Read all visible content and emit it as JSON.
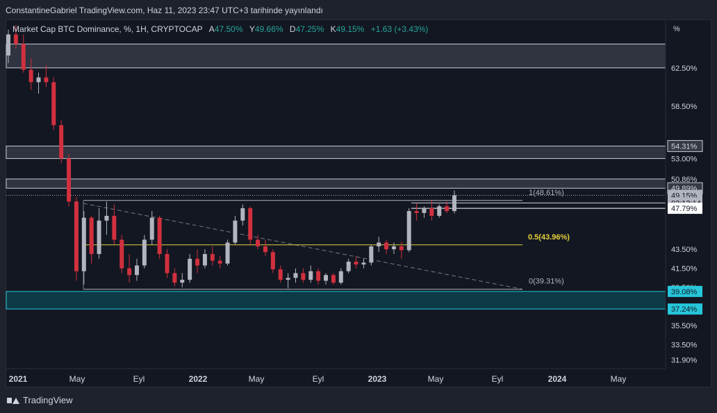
{
  "header": {
    "published": "ConstantineGabriel TradingView.com, Haz 11, 2023 23:47 UTC+3 tarihinde yayınlandı"
  },
  "legend": {
    "symbol": "Market Cap BTC Dominance, %, 1H, CRYPTOCAP",
    "open_label": "A",
    "open_value": "47.50%",
    "high_label": "Y",
    "high_value": "49.66%",
    "low_label": "D",
    "low_value": "47.25%",
    "close_label": "K",
    "close_value": "49.15%",
    "change": "+1.63 (+3.43%)"
  },
  "footer": {
    "brand": "TradingView"
  },
  "colors": {
    "up": "#b2b5be",
    "down": "#d1303e",
    "fib": "#e6d23a",
    "zone": "#26c6da",
    "zone_fill": "#0d3a46"
  },
  "chart_data": {
    "type": "candlestick",
    "title": "Market Cap BTC Dominance, %, 1H, CRYPTOCAP",
    "yunit": "%",
    "ylim": [
      31.0,
      67.5
    ],
    "x_ticks": [
      "2021",
      "May",
      "Eyl",
      "2022",
      "May",
      "Eyl",
      "2023",
      "May",
      "Eyl",
      "2024",
      "May"
    ],
    "y_ticks": [
      "62.50%",
      "58.50%",
      "43.50%",
      "41.50%",
      "39.50%",
      "35.50%",
      "33.50%",
      "31.90%"
    ],
    "price_labels": [
      {
        "text": "54.31%",
        "value": 54.31,
        "style": "gray"
      },
      {
        "text": "53.00%",
        "value": 53.0,
        "style": "plain"
      },
      {
        "text": "50.86%",
        "value": 50.86,
        "style": "plain"
      },
      {
        "text": "49.89%",
        "value": 49.89,
        "style": "gray"
      },
      {
        "text": "49.15%",
        "value": 49.15,
        "style": "current"
      },
      {
        "text": "03:12:14",
        "value": 48.35,
        "style": "current"
      },
      {
        "text": "47.79%",
        "value": 47.79,
        "style": "white"
      },
      {
        "text": "39.08%",
        "value": 39.08,
        "style": "teal"
      },
      {
        "text": "37.24%",
        "value": 37.24,
        "style": "teal"
      }
    ],
    "zones": [
      {
        "from": 62.5,
        "to": 65.0,
        "color": "gray"
      },
      {
        "from": 53.0,
        "to": 54.31,
        "color": "gray"
      },
      {
        "from": 49.89,
        "to": 50.86,
        "color": "gray"
      },
      {
        "from": 37.24,
        "to": 39.08,
        "color": "teal"
      }
    ],
    "fibonacci": [
      {
        "label": "1(48.61%)",
        "value": 48.61
      },
      {
        "label": "0.5(43.96%)",
        "value": 43.96
      },
      {
        "label": "0(39.31%)",
        "value": 39.31
      }
    ],
    "trendline": {
      "from": [
        "2021-05",
        48.3
      ],
      "to": [
        "2023-09",
        39.31
      ]
    },
    "ohlc": [
      {
        "t": "2021-01",
        "o": 63.8,
        "h": 66.5,
        "l": 63.0,
        "c": 66.0
      },
      {
        "t": "2021-01b",
        "o": 66.0,
        "h": 67.0,
        "l": 64.5,
        "c": 65.0
      },
      {
        "t": "2021-02",
        "o": 65.0,
        "h": 66.0,
        "l": 62.0,
        "c": 62.3
      },
      {
        "t": "2021-02b",
        "o": 62.3,
        "h": 63.5,
        "l": 60.2,
        "c": 61.0
      },
      {
        "t": "2021-03",
        "o": 61.0,
        "h": 62.0,
        "l": 59.8,
        "c": 61.5
      },
      {
        "t": "2021-03b",
        "o": 61.5,
        "h": 62.8,
        "l": 60.5,
        "c": 61.0
      },
      {
        "t": "2021-04",
        "o": 61.0,
        "h": 61.5,
        "l": 56.0,
        "c": 56.5
      },
      {
        "t": "2021-04b",
        "o": 56.5,
        "h": 57.0,
        "l": 52.5,
        "c": 53.0
      },
      {
        "t": "2021-05",
        "o": 53.0,
        "h": 53.5,
        "l": 48.0,
        "c": 48.5
      },
      {
        "t": "2021-05b",
        "o": 48.5,
        "h": 49.0,
        "l": 40.2,
        "c": 41.2
      },
      {
        "t": "2021-06",
        "o": 41.2,
        "h": 47.5,
        "l": 39.8,
        "c": 46.8
      },
      {
        "t": "2021-06b",
        "o": 46.8,
        "h": 47.0,
        "l": 42.0,
        "c": 43.0
      },
      {
        "t": "2021-07",
        "o": 43.0,
        "h": 47.8,
        "l": 42.5,
        "c": 46.5
      },
      {
        "t": "2021-07b",
        "o": 46.5,
        "h": 48.5,
        "l": 45.0,
        "c": 47.0
      },
      {
        "t": "2021-08",
        "o": 47.0,
        "h": 48.2,
        "l": 44.0,
        "c": 44.5
      },
      {
        "t": "2021-08b",
        "o": 44.5,
        "h": 45.0,
        "l": 41.0,
        "c": 41.5
      },
      {
        "t": "2021-09",
        "o": 41.5,
        "h": 43.0,
        "l": 40.0,
        "c": 40.8
      },
      {
        "t": "2021-09b",
        "o": 40.8,
        "h": 42.5,
        "l": 40.2,
        "c": 41.8
      },
      {
        "t": "2021-10",
        "o": 41.8,
        "h": 45.0,
        "l": 41.5,
        "c": 44.5
      },
      {
        "t": "2021-10b",
        "o": 44.5,
        "h": 47.5,
        "l": 44.0,
        "c": 46.8
      },
      {
        "t": "2021-11",
        "o": 46.8,
        "h": 47.0,
        "l": 42.5,
        "c": 43.0
      },
      {
        "t": "2021-11b",
        "o": 43.0,
        "h": 43.5,
        "l": 40.5,
        "c": 41.0
      },
      {
        "t": "2021-12",
        "o": 41.0,
        "h": 41.5,
        "l": 39.6,
        "c": 40.0
      },
      {
        "t": "2021-12b",
        "o": 40.0,
        "h": 41.0,
        "l": 39.5,
        "c": 40.3
      },
      {
        "t": "2022-01",
        "o": 40.3,
        "h": 43.0,
        "l": 40.0,
        "c": 42.5
      },
      {
        "t": "2022-01b",
        "o": 42.5,
        "h": 43.5,
        "l": 41.0,
        "c": 41.8
      },
      {
        "t": "2022-02",
        "o": 41.8,
        "h": 43.5,
        "l": 41.5,
        "c": 43.0
      },
      {
        "t": "2022-02b",
        "o": 43.0,
        "h": 43.8,
        "l": 41.8,
        "c": 42.3
      },
      {
        "t": "2022-03",
        "o": 42.3,
        "h": 42.8,
        "l": 41.5,
        "c": 42.0
      },
      {
        "t": "2022-03b",
        "o": 42.0,
        "h": 44.5,
        "l": 41.8,
        "c": 44.2
      },
      {
        "t": "2022-04",
        "o": 44.2,
        "h": 47.0,
        "l": 44.0,
        "c": 46.5
      },
      {
        "t": "2022-04b",
        "o": 46.5,
        "h": 48.2,
        "l": 46.0,
        "c": 47.8
      },
      {
        "t": "2022-05",
        "o": 47.8,
        "h": 48.0,
        "l": 44.0,
        "c": 44.5
      },
      {
        "t": "2022-05b",
        "o": 44.5,
        "h": 45.0,
        "l": 43.5,
        "c": 43.8
      },
      {
        "t": "2022-06",
        "o": 43.8,
        "h": 44.5,
        "l": 42.8,
        "c": 43.2
      },
      {
        "t": "2022-06b",
        "o": 43.2,
        "h": 43.5,
        "l": 41.0,
        "c": 41.4
      },
      {
        "t": "2022-07",
        "o": 41.4,
        "h": 41.8,
        "l": 40.0,
        "c": 40.3
      },
      {
        "t": "2022-07b",
        "o": 40.3,
        "h": 41.0,
        "l": 39.4,
        "c": 40.5
      },
      {
        "t": "2022-08",
        "o": 40.5,
        "h": 41.5,
        "l": 40.0,
        "c": 41.0
      },
      {
        "t": "2022-08b",
        "o": 41.0,
        "h": 41.5,
        "l": 40.0,
        "c": 40.3
      },
      {
        "t": "2022-09",
        "o": 40.3,
        "h": 41.8,
        "l": 40.0,
        "c": 41.2
      },
      {
        "t": "2022-09b",
        "o": 41.2,
        "h": 41.5,
        "l": 39.8,
        "c": 40.2
      },
      {
        "t": "2022-10",
        "o": 40.2,
        "h": 41.0,
        "l": 39.8,
        "c": 40.8
      },
      {
        "t": "2022-10b",
        "o": 40.8,
        "h": 41.0,
        "l": 39.8,
        "c": 40.0
      },
      {
        "t": "2022-11",
        "o": 40.0,
        "h": 41.5,
        "l": 39.8,
        "c": 41.2
      },
      {
        "t": "2022-11b",
        "o": 41.2,
        "h": 42.5,
        "l": 41.0,
        "c": 42.2
      },
      {
        "t": "2022-12",
        "o": 42.2,
        "h": 42.8,
        "l": 41.5,
        "c": 41.9
      },
      {
        "t": "2022-12b",
        "o": 41.9,
        "h": 42.5,
        "l": 41.5,
        "c": 42.1
      },
      {
        "t": "2023-01",
        "o": 42.1,
        "h": 44.0,
        "l": 41.8,
        "c": 43.8
      },
      {
        "t": "2023-01b",
        "o": 43.8,
        "h": 44.8,
        "l": 43.2,
        "c": 44.2
      },
      {
        "t": "2023-02",
        "o": 44.2,
        "h": 44.5,
        "l": 43.0,
        "c": 43.5
      },
      {
        "t": "2023-02b",
        "o": 43.5,
        "h": 44.2,
        "l": 43.0,
        "c": 43.8
      },
      {
        "t": "2023-03",
        "o": 43.8,
        "h": 44.3,
        "l": 42.5,
        "c": 43.4
      },
      {
        "t": "2023-03b",
        "o": 43.4,
        "h": 47.8,
        "l": 43.2,
        "c": 47.5
      },
      {
        "t": "2023-04",
        "o": 47.5,
        "h": 48.3,
        "l": 46.5,
        "c": 47.3
      },
      {
        "t": "2023-04b",
        "o": 47.3,
        "h": 48.0,
        "l": 46.8,
        "c": 47.8
      },
      {
        "t": "2023-05",
        "o": 47.8,
        "h": 48.6,
        "l": 46.5,
        "c": 47.0
      },
      {
        "t": "2023-05b",
        "o": 47.0,
        "h": 48.2,
        "l": 46.8,
        "c": 48.0
      },
      {
        "t": "2023-06",
        "o": 48.0,
        "h": 48.5,
        "l": 47.3,
        "c": 47.5
      },
      {
        "t": "2023-06b",
        "o": 47.5,
        "h": 49.66,
        "l": 47.25,
        "c": 49.15
      }
    ]
  }
}
